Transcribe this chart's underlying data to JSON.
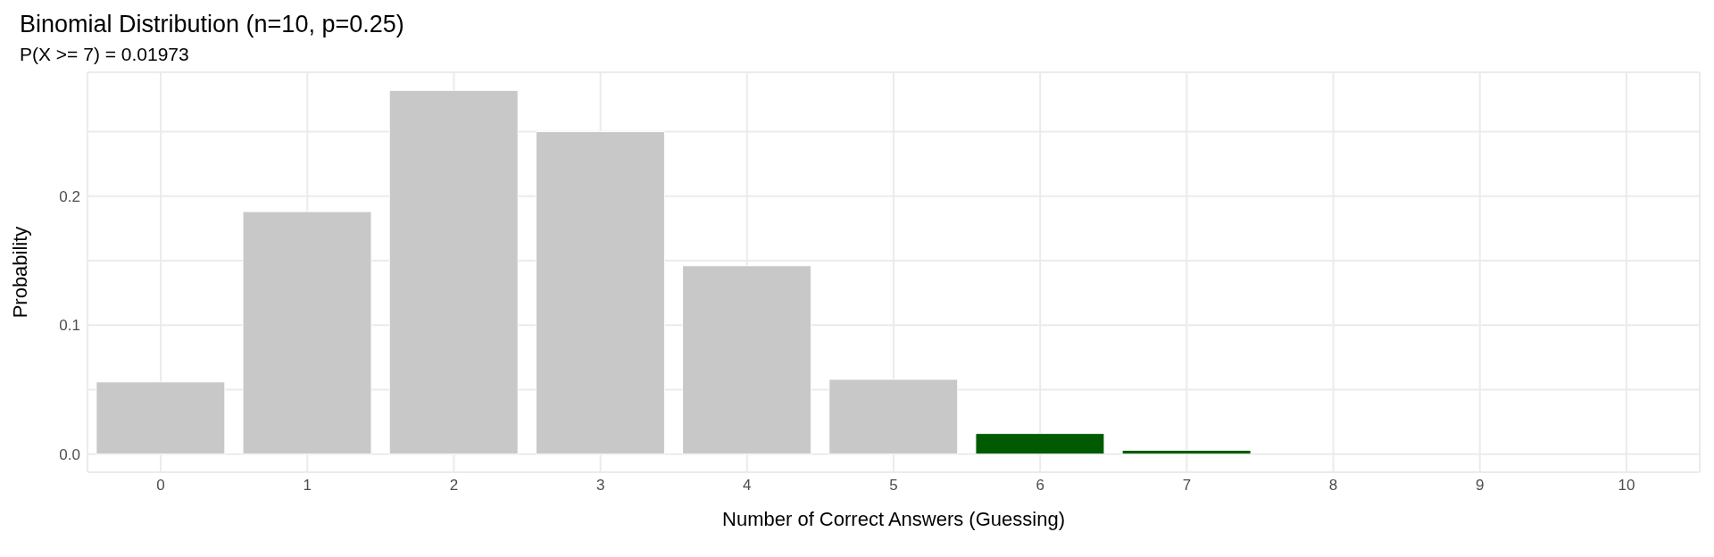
{
  "chart_data": {
    "type": "bar",
    "title": "Binomial Distribution (n=10, p=0.25)",
    "subtitle": "P(X >= 7) = 0.01973",
    "xlabel": "Number of Correct Answers (Guessing)",
    "ylabel": "Probability",
    "categories": [
      "0",
      "1",
      "2",
      "3",
      "4",
      "5",
      "6",
      "7",
      "8",
      "9",
      "10"
    ],
    "values": [
      0.056,
      0.188,
      0.282,
      0.25,
      0.146,
      0.058,
      0.016,
      0.003,
      0.0,
      0.0,
      0.0
    ],
    "colors": [
      "#c8c8c8",
      "#c8c8c8",
      "#c8c8c8",
      "#c8c8c8",
      "#c8c8c8",
      "#c8c8c8",
      "#005a00",
      "#005a00",
      "#005a00",
      "#005a00",
      "#005a00"
    ],
    "ylim": [
      -0.014,
      0.296
    ],
    "yticks": [
      {
        "value": 0,
        "label": "0.0"
      },
      {
        "value": 0.05,
        "label": null
      },
      {
        "value": 0.1,
        "label": "0.1"
      },
      {
        "value": 0.15,
        "label": null
      },
      {
        "value": 0.2,
        "label": "0.2"
      },
      {
        "value": 0.25,
        "label": null
      }
    ],
    "grid": true
  }
}
